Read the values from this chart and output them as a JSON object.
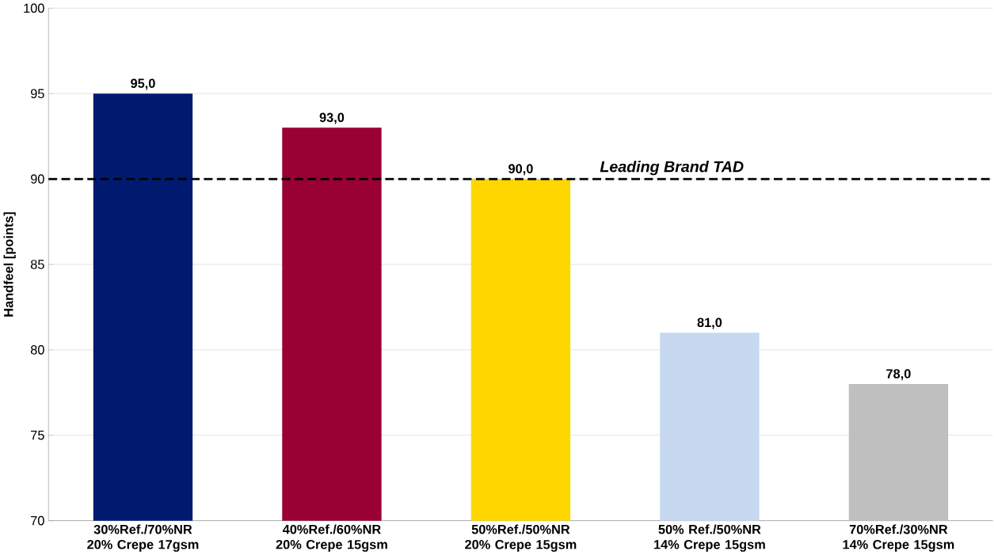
{
  "chart_data": {
    "type": "bar",
    "ylabel": "Handfeel [points]",
    "categories": [
      "30%Ref./70%NR 20% Crepe 17gsm",
      "40%Ref./60%NR 20% Crepe 15gsm",
      "50%Ref./50%NR 20% Crepe 15gsm",
      "50% Ref./50%NR 14% Crepe 15gsm",
      "70%Ref./30%NR 14% Crepe 15gsm"
    ],
    "values": [
      95,
      93,
      90,
      81,
      78
    ],
    "colors": [
      "#001a70",
      "#990033",
      "#ffd700",
      "#c6d9f0",
      "#bfbfbf"
    ],
    "value_labels": [
      "95,0",
      "93,0",
      "90,0",
      "81,0",
      "78,0"
    ],
    "ylim": [
      70,
      100
    ],
    "yticks": [
      70,
      75,
      80,
      85,
      90,
      95,
      100
    ],
    "grid": "y",
    "ref_lines": [
      {
        "axis": "y",
        "value": 90,
        "label": "Leading Brand TAD",
        "color": "#000000",
        "line_style": "dashed"
      }
    ]
  }
}
